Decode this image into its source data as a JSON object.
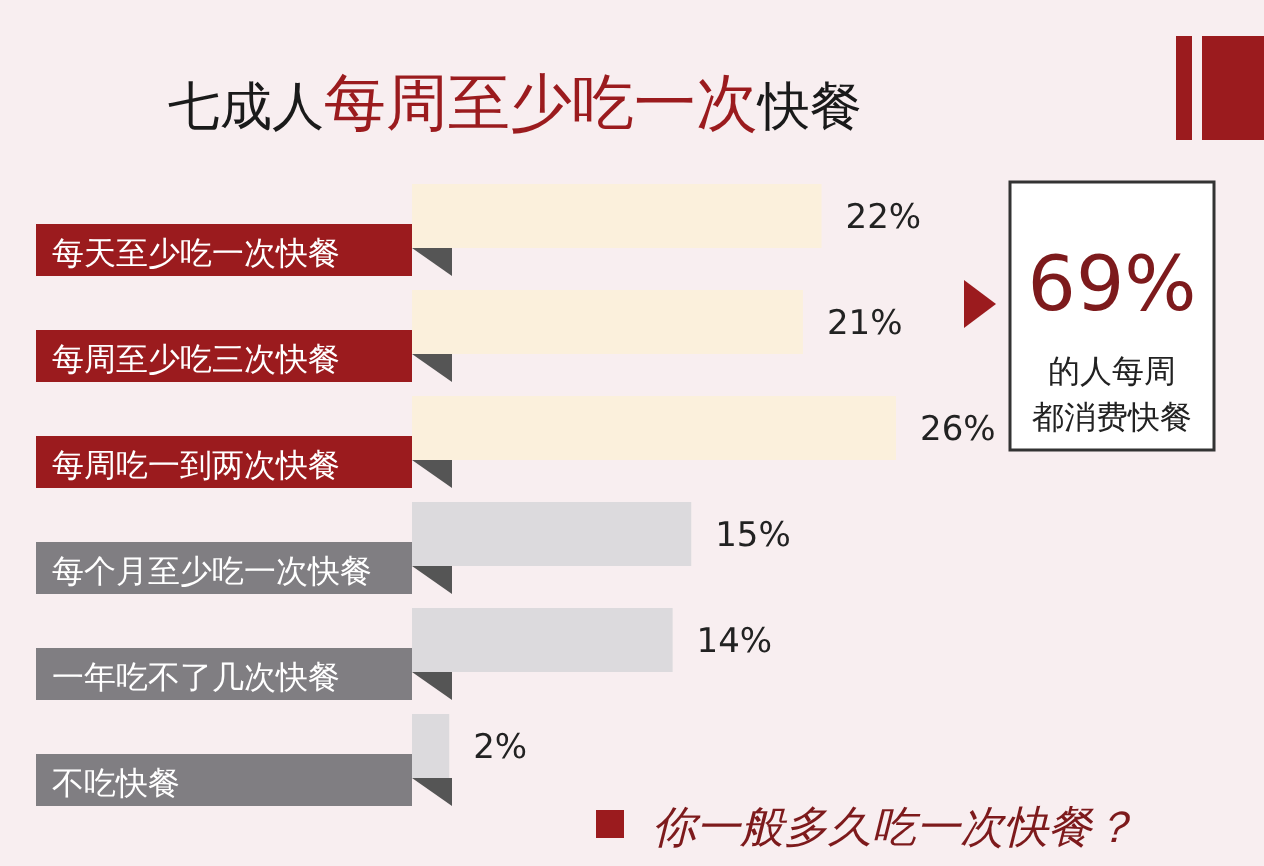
{
  "chart_data": {
    "type": "bar",
    "orientation": "horizontal",
    "title": "七成人**每周至少吃一次**快餐",
    "categories": [
      "每天至少吃一次快餐",
      "每周至少吃三次快餐",
      "每周吃一到两次快餐",
      "每个月至少吃一次快餐",
      "一年吃不了几次快餐",
      "不吃快餐"
    ],
    "values": [
      22,
      21,
      26,
      15,
      14,
      2
    ],
    "colors": [
      "#fbf0dc",
      "#fbf0dc",
      "#fbf0dc",
      "#dcdadd",
      "#dcdadd",
      "#dcdadd"
    ],
    "value_labels": [
      "22%",
      "21%",
      "26%",
      "15%",
      "14%",
      "2%"
    ],
    "annotations": [
      "69%",
      "的人每周都消费快餐",
      "你一般多久吃一次快餐？"
    ]
  }
}
